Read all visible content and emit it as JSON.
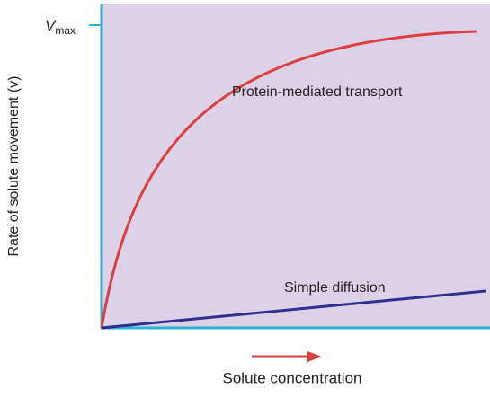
{
  "y_axis": {
    "label": "Rate of solute movement (v)",
    "tick": {
      "symbol": "V",
      "subscript": "max"
    }
  },
  "x_axis": {
    "label": "Solute concentration"
  },
  "curves": [
    {
      "label": "Protein-mediated transport"
    },
    {
      "label": "Simple diffusion"
    }
  ]
}
